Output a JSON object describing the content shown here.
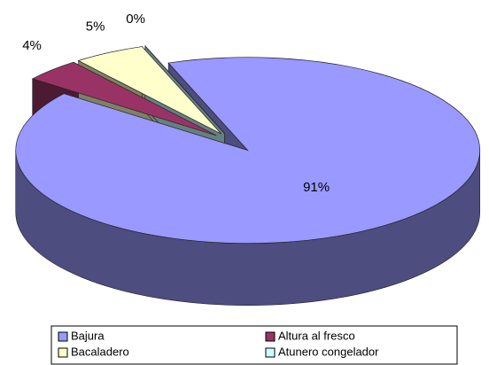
{
  "chart_data": {
    "type": "pie3d",
    "categories": [
      "Bajura",
      "Altura al fresco",
      "Bacaladero",
      "Atunero congelador"
    ],
    "values": [
      91,
      4,
      5,
      0
    ],
    "value_labels": [
      "91%",
      "4%",
      "5%",
      "0%"
    ],
    "colors": [
      "#9999ff",
      "#993366",
      "#ffffcc",
      "#ccffff"
    ]
  }
}
